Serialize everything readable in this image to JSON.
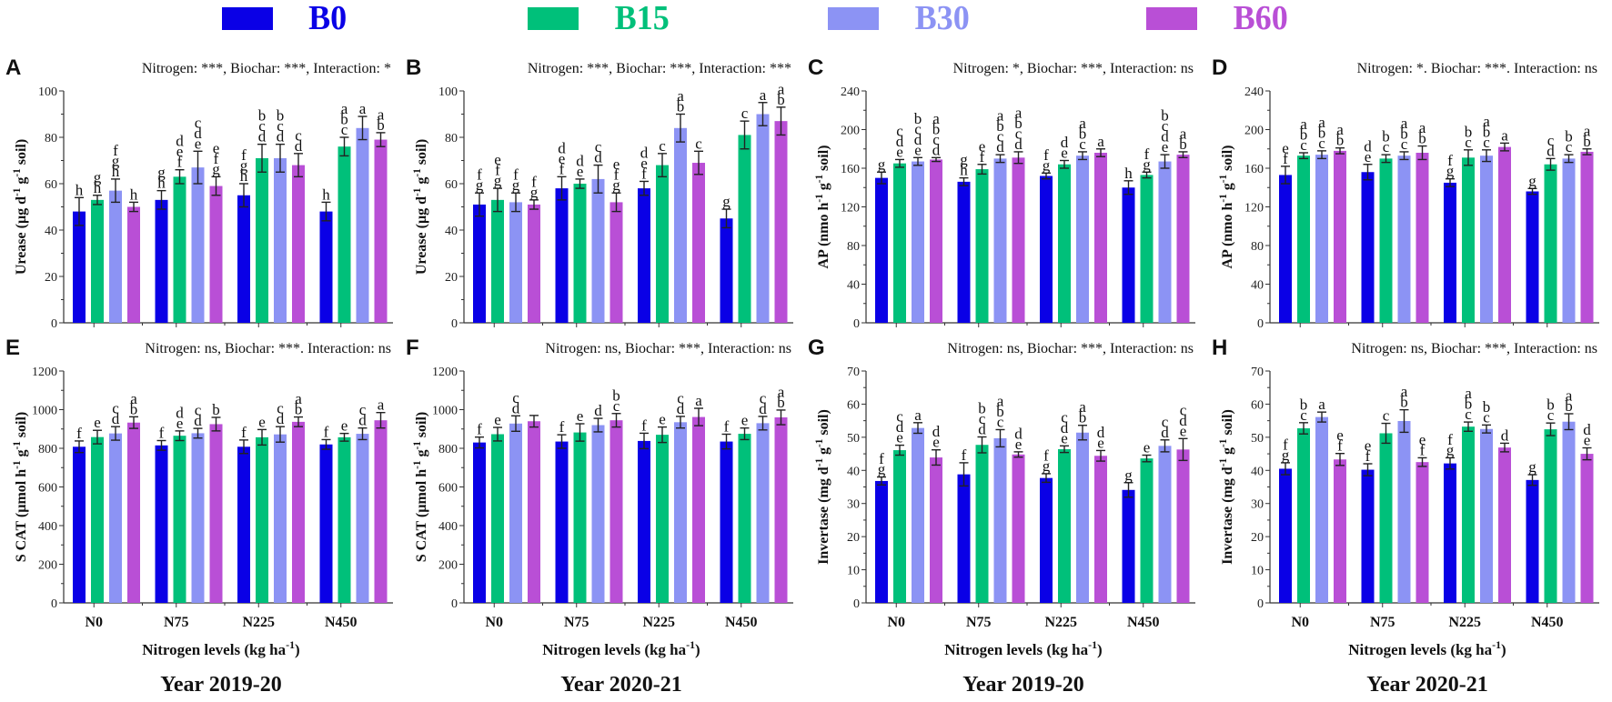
{
  "legend": {
    "items": [
      {
        "label": "B0",
        "color": "#0a00e6"
      },
      {
        "label": "B15",
        "color": "#00c07a"
      },
      {
        "label": "B30",
        "color": "#8c93f4"
      },
      {
        "label": "B60",
        "color": "#b94fd6"
      }
    ]
  },
  "columns": [
    {
      "year": "Year 2019-20",
      "xlabel": "Nitrogen levels (kg ha⁻¹)"
    },
    {
      "year": "Year 2020-21",
      "xlabel": "Nitrogen levels (kg ha⁻¹)"
    },
    {
      "year": "Year 2019-20",
      "xlabel": "Nitrogen levels (kg ha⁻¹)"
    },
    {
      "year": "Year 2020-21",
      "xlabel": "Nitrogen levels (kg ha⁻¹)"
    }
  ],
  "chart_data": [
    {
      "type": "bar",
      "panel": "A",
      "stats": "Nitrogen: ***, Biochar: ***, Interaction: *",
      "ylabel": "Urease (µg d⁻¹ g⁻¹ soil)",
      "xlabel": "",
      "ylim": [
        0,
        100
      ],
      "yticks": [
        0,
        20,
        40,
        60,
        80,
        100
      ],
      "categories": [
        "N0",
        "N75",
        "N225",
        "N450"
      ],
      "show_xticklabels": false,
      "series": [
        {
          "name": "B0",
          "values": [
            48,
            53,
            55,
            48
          ],
          "errors": [
            6,
            4,
            5,
            4
          ],
          "letters": [
            "h",
            "gh",
            "fgh",
            "h"
          ]
        },
        {
          "name": "B15",
          "values": [
            53,
            63,
            71,
            76
          ],
          "errors": [
            2,
            3,
            6,
            4
          ],
          "letters": [
            "gh",
            "def",
            "bcd",
            "abc"
          ]
        },
        {
          "name": "B30",
          "values": [
            57,
            67,
            71,
            84
          ],
          "errors": [
            5,
            7,
            6,
            5
          ],
          "letters": [
            "fgh",
            "cde",
            "bcd",
            "a"
          ]
        },
        {
          "name": "B60",
          "values": [
            50,
            59,
            68,
            79
          ],
          "errors": [
            2,
            4,
            5,
            3
          ],
          "letters": [
            "h",
            "efg",
            "cd",
            "ab"
          ]
        }
      ]
    },
    {
      "type": "bar",
      "panel": "B",
      "stats": "Nitrogen: ***, Biochar: ***, Interaction: ***",
      "ylabel": "Urease (µg d⁻¹ g⁻¹ soil)",
      "xlabel": "",
      "ylim": [
        0,
        100
      ],
      "yticks": [
        0,
        20,
        40,
        60,
        80,
        100
      ],
      "categories": [
        "N0",
        "N75",
        "N225",
        "N450"
      ],
      "show_xticklabels": false,
      "series": [
        {
          "name": "B0",
          "values": [
            51,
            58,
            58,
            45
          ],
          "errors": [
            5,
            5,
            3,
            4
          ],
          "letters": [
            "fg",
            "def",
            "def",
            "g"
          ]
        },
        {
          "name": "B15",
          "values": [
            53,
            60,
            68,
            81
          ],
          "errors": [
            5,
            2,
            5,
            6
          ],
          "letters": [
            "efg",
            "de",
            "c",
            "c"
          ]
        },
        {
          "name": "B30",
          "values": [
            52,
            62,
            84,
            90
          ],
          "errors": [
            4,
            6,
            6,
            5
          ],
          "letters": [
            "fg",
            "cd",
            "ab",
            "a"
          ]
        },
        {
          "name": "B60",
          "values": [
            51,
            52,
            69,
            87
          ],
          "errors": [
            2,
            4,
            5,
            6
          ],
          "letters": [
            "fg",
            "efg",
            "c",
            "ab"
          ]
        }
      ]
    },
    {
      "type": "bar",
      "panel": "C",
      "stats": "Nitrogen: *, Biochar: ***, Interaction: ns",
      "ylabel": "AP (nmo h⁻¹ g⁻¹ soil)",
      "xlabel": "",
      "ylim": [
        0,
        240
      ],
      "yticks": [
        0,
        40,
        80,
        120,
        160,
        200,
        240
      ],
      "categories": [
        "N0",
        "N75",
        "N225",
        "N450"
      ],
      "show_xticklabels": false,
      "series": [
        {
          "name": "B0",
          "values": [
            150,
            146,
            152,
            140
          ],
          "errors": [
            6,
            4,
            3,
            7
          ],
          "letters": [
            "g",
            "gh",
            "fg",
            "h"
          ]
        },
        {
          "name": "B15",
          "values": [
            165,
            159,
            164,
            153
          ],
          "errors": [
            4,
            5,
            4,
            3
          ],
          "letters": [
            "cde",
            "ef",
            "de",
            "fg"
          ]
        },
        {
          "name": "B30",
          "values": [
            167,
            170,
            173,
            167
          ],
          "errors": [
            4,
            4,
            4,
            7
          ],
          "letters": [
            "bcde",
            "abcd",
            "abc",
            "bcde"
          ]
        },
        {
          "name": "B60",
          "values": [
            169,
            171,
            176,
            174
          ],
          "errors": [
            2,
            6,
            4,
            3
          ],
          "letters": [
            "abcd",
            "abcd",
            "a",
            "ab"
          ]
        }
      ]
    },
    {
      "type": "bar",
      "panel": "D",
      "stats": "Nitrogen: *. Biochar: ***. Interaction: ns",
      "ylabel": "AP (nmo h⁻¹ g⁻¹ soil)",
      "xlabel": "",
      "ylim": [
        0,
        240
      ],
      "yticks": [
        0,
        40,
        80,
        120,
        160,
        200,
        240
      ],
      "categories": [
        "N0",
        "N75",
        "N225",
        "N450"
      ],
      "show_xticklabels": false,
      "series": [
        {
          "name": "B0",
          "values": [
            153,
            156,
            145,
            136
          ],
          "errors": [
            9,
            8,
            4,
            3
          ],
          "letters": [
            "ef",
            "de",
            "fg",
            "g"
          ]
        },
        {
          "name": "B15",
          "values": [
            173,
            170,
            171,
            164
          ],
          "errors": [
            3,
            4,
            8,
            6
          ],
          "letters": [
            "abc",
            "bc",
            "bc",
            "cd"
          ]
        },
        {
          "name": "B30",
          "values": [
            174,
            173,
            173,
            170
          ],
          "errors": [
            4,
            4,
            6,
            4
          ],
          "letters": [
            "abc",
            "abc",
            "abc",
            "bc"
          ]
        },
        {
          "name": "B60",
          "values": [
            178,
            176,
            182,
            177
          ],
          "errors": [
            3,
            7,
            4,
            3
          ],
          "letters": [
            "ab",
            "ab",
            "a",
            "ab"
          ]
        }
      ]
    },
    {
      "type": "bar",
      "panel": "E",
      "stats": "Nitrogen: ns, Biochar: ***. Interaction: ns",
      "ylabel": "S CAT (µmol h⁻¹ g⁻¹ soil)",
      "xlabel": "Nitrogen levels (kg ha⁻¹)",
      "ylim": [
        0,
        1200
      ],
      "yticks": [
        0,
        200,
        400,
        600,
        800,
        1000,
        1200
      ],
      "categories": [
        "N0",
        "N75",
        "N225",
        "N450"
      ],
      "show_xticklabels": true,
      "series": [
        {
          "name": "B0",
          "values": [
            808,
            815,
            808,
            820
          ],
          "errors": [
            30,
            25,
            35,
            25
          ],
          "letters": [
            "f",
            "f",
            "f",
            "f"
          ]
        },
        {
          "name": "B15",
          "values": [
            858,
            865,
            857,
            857
          ],
          "errors": [
            35,
            25,
            40,
            20
          ],
          "letters": [
            "e",
            "de",
            "e",
            "e"
          ]
        },
        {
          "name": "B30",
          "values": [
            877,
            878,
            872,
            875
          ],
          "errors": [
            35,
            25,
            40,
            30
          ],
          "letters": [
            "cd",
            "cd",
            "cd",
            "cd"
          ]
        },
        {
          "name": "B60",
          "values": [
            933,
            925,
            937,
            945
          ],
          "errors": [
            30,
            35,
            25,
            40
          ],
          "letters": [
            "ab",
            "b",
            "ab",
            "a"
          ]
        }
      ]
    },
    {
      "type": "bar",
      "panel": "F",
      "stats": "Nitrogen: ns, Biochar: ***, Interaction: ns",
      "ylabel": "S CAT (µmol h⁻¹ g⁻¹ soil)",
      "xlabel": "Nitrogen levels (kg ha⁻¹)",
      "ylim": [
        0,
        1200
      ],
      "yticks": [
        0,
        200,
        400,
        600,
        800,
        1000,
        1200
      ],
      "categories": [
        "N0",
        "N75",
        "N225",
        "N450"
      ],
      "show_xticklabels": true,
      "series": [
        {
          "name": "B0",
          "values": [
            830,
            835,
            838,
            835
          ],
          "errors": [
            28,
            35,
            40,
            38
          ],
          "letters": [
            "f",
            "f",
            "f",
            "f"
          ]
        },
        {
          "name": "B15",
          "values": [
            873,
            882,
            870,
            875
          ],
          "errors": [
            35,
            45,
            40,
            30
          ],
          "letters": [
            "e",
            "e",
            "e",
            "e"
          ]
        },
        {
          "name": "B30",
          "values": [
            928,
            920,
            935,
            930
          ],
          "errors": [
            40,
            35,
            30,
            35
          ],
          "letters": [
            "cd",
            "d",
            "cd",
            "cd"
          ]
        },
        {
          "name": "B60",
          "values": [
            940,
            945,
            962,
            960
          ],
          "errors": [
            30,
            35,
            45,
            38
          ],
          "letters": [
            "",
            "bc",
            "a",
            "ab"
          ]
        }
      ]
    },
    {
      "type": "bar",
      "panel": "G",
      "stats": "Nitrogen: ns, Biochar: ***, Interaction: ns",
      "ylabel": "Invertase (mg d⁻¹ g⁻¹ soil)",
      "xlabel": "Nitrogen levels (kg ha⁻¹)",
      "ylim": [
        0,
        70
      ],
      "yticks": [
        0,
        10,
        20,
        30,
        40,
        50,
        60,
        70
      ],
      "categories": [
        "N0",
        "N75",
        "N225",
        "N450"
      ],
      "show_xticklabels": true,
      "series": [
        {
          "name": "B0",
          "values": [
            36.8,
            38.8,
            37.7,
            34.1
          ],
          "errors": [
            1.2,
            3.5,
            1.3,
            2.2
          ],
          "letters": [
            "fg",
            "f",
            "fg",
            "g"
          ]
        },
        {
          "name": "B15",
          "values": [
            46.1,
            47.7,
            46.4,
            43.6
          ],
          "errors": [
            1.5,
            2.4,
            1.0,
            1.0
          ],
          "letters": [
            "cde",
            "bcd",
            "cde",
            "e"
          ]
        },
        {
          "name": "B30",
          "values": [
            52.8,
            49.7,
            51.4,
            47.4
          ],
          "errors": [
            1.6,
            2.6,
            2.2,
            1.8
          ],
          "letters": [
            "a",
            "abc",
            "ab",
            "cd"
          ]
        },
        {
          "name": "B60",
          "values": [
            43.9,
            44.8,
            44.4,
            46.3
          ],
          "errors": [
            2.3,
            0.8,
            1.6,
            3.3
          ],
          "letters": [
            "de",
            "de",
            "de",
            "cde"
          ]
        }
      ]
    },
    {
      "type": "bar",
      "panel": "H",
      "stats": "Nitrogen: ns, Biochar: ***, Interaction: ns",
      "ylabel": "Invertase (mg d⁻¹ g⁻¹ soil)",
      "xlabel": "Nitrogen levels (kg ha⁻¹)",
      "ylim": [
        0,
        70
      ],
      "yticks": [
        0,
        10,
        20,
        30,
        40,
        50,
        60,
        70
      ],
      "categories": [
        "N0",
        "N75",
        "N225",
        "N450"
      ],
      "show_xticklabels": true,
      "series": [
        {
          "name": "B0",
          "values": [
            40.5,
            40.2,
            42.1,
            37.1
          ],
          "errors": [
            1.8,
            1.8,
            1.7,
            1.6
          ],
          "letters": [
            "fg",
            "ef",
            "fg",
            "g"
          ]
        },
        {
          "name": "B15",
          "values": [
            52.7,
            51.2,
            53.2,
            52.4
          ],
          "errors": [
            1.7,
            3.0,
            1.4,
            1.9
          ],
          "letters": [
            "bc",
            "c",
            "abc",
            "bc"
          ]
        },
        {
          "name": "B30",
          "values": [
            56.1,
            54.9,
            52.5,
            54.7
          ],
          "errors": [
            1.5,
            3.4,
            1.2,
            2.4
          ],
          "letters": [
            "a",
            "ab",
            "bc",
            "ab"
          ]
        },
        {
          "name": "B60",
          "values": [
            43.3,
            42.5,
            46.9,
            45.0
          ],
          "errors": [
            1.8,
            1.3,
            1.3,
            1.8
          ],
          "letters": [
            "ef",
            "ef",
            "d",
            "de"
          ]
        }
      ]
    }
  ]
}
